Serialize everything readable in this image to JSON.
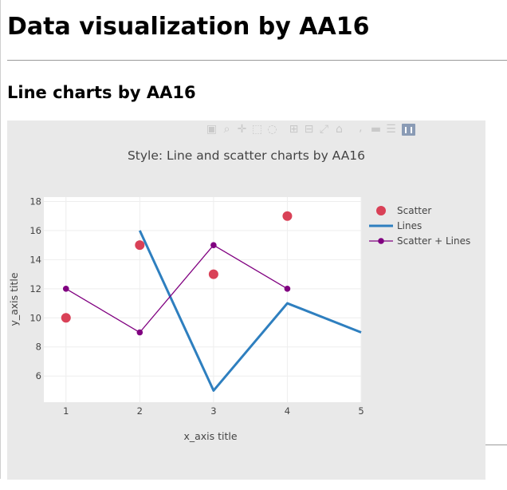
{
  "page": {
    "h1": "Data visualization by AA16",
    "h2": "Line charts by AA16"
  },
  "modebar": {
    "icons": [
      "camera-icon",
      "zoom-icon",
      "pan-icon",
      "box-select-icon",
      "lasso-icon",
      "zoom-in-icon",
      "zoom-out-icon",
      "autoscale-icon",
      "reset-axes-icon",
      "spike-lines-icon",
      "hover-closest-icon",
      "hover-compare-icon",
      "plotly-logo-icon"
    ]
  },
  "chart_data": {
    "type": "line",
    "title": "Style: Line and scatter charts by AA16",
    "xlabel": "x_axis title",
    "ylabel": "y_axis title",
    "xlim": [
      0.7,
      5
    ],
    "ylim": [
      4.2,
      18.3
    ],
    "x_ticks": [
      1,
      2,
      3,
      4,
      5
    ],
    "y_ticks": [
      6,
      8,
      10,
      12,
      14,
      16,
      18
    ],
    "grid": true,
    "legend_position": "right",
    "series": [
      {
        "name": "Scatter",
        "mode": "markers",
        "color": "#d94157",
        "x": [
          1,
          2,
          3,
          4
        ],
        "y": [
          10,
          15,
          13,
          17
        ]
      },
      {
        "name": "Lines",
        "mode": "lines",
        "color": "#2e7fbf",
        "x": [
          2,
          3,
          4,
          5
        ],
        "y": [
          16,
          5,
          11,
          9
        ]
      },
      {
        "name": "Scatter + Lines",
        "mode": "lines+markers",
        "color": "#800080",
        "x": [
          1,
          2,
          3,
          4
        ],
        "y": [
          12,
          9,
          15,
          12
        ]
      }
    ]
  }
}
